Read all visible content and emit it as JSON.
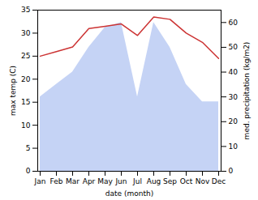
{
  "chart_data": {
    "type": "line",
    "categories": [
      "Jan",
      "Feb",
      "Mar",
      "Apr",
      "May",
      "Jun",
      "Jul",
      "Aug",
      "Sep",
      "Oct",
      "Nov",
      "Dec"
    ],
    "xlabel": "date (month)",
    "ylabel": "max temp (C)",
    "y2label": "med. precipitation (kg/m2)",
    "series": [
      {
        "type": "area",
        "axis": "y2",
        "color": "#c5d3f5",
        "values": [
          30,
          35,
          40,
          50,
          58,
          60,
          30,
          60,
          50,
          35,
          28,
          28
        ]
      },
      {
        "type": "line",
        "color": "#cc3333",
        "values": [
          25,
          26,
          27,
          31,
          31.5,
          32,
          29.5,
          33.5,
          33,
          30,
          28,
          24.5
        ]
      }
    ],
    "ylim": [
      0,
      35
    ],
    "yticks": [
      0,
      5,
      10,
      15,
      20,
      25,
      30,
      35
    ],
    "y2lim": [
      0,
      65
    ],
    "y2ticks": [
      0,
      10,
      20,
      30,
      40,
      50,
      60
    ],
    "grid": false
  }
}
